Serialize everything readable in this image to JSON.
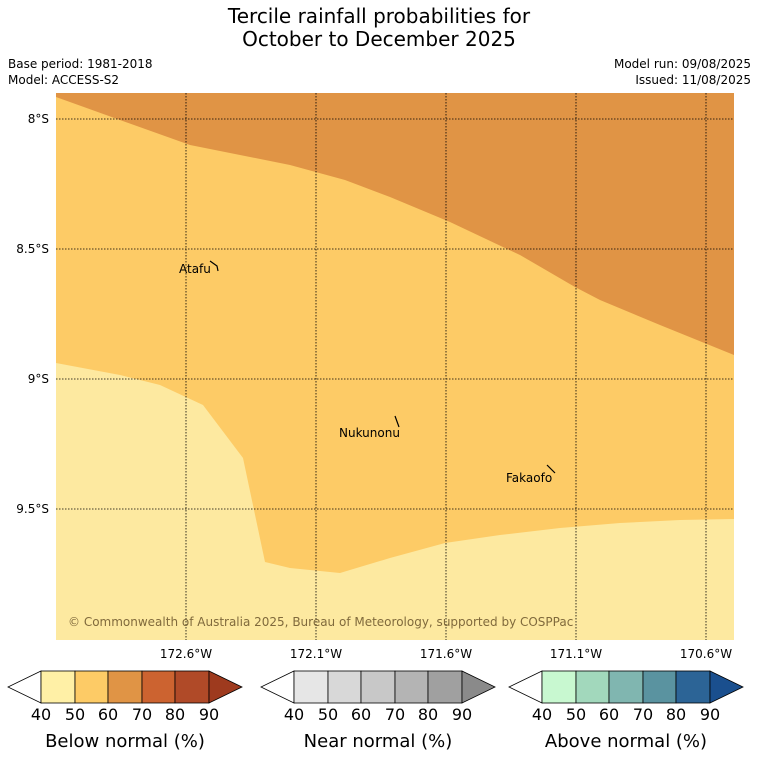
{
  "title": {
    "line1": "Tercile rainfall probabilities for",
    "line2": "October to December 2025"
  },
  "meta": {
    "base_period": "Base period: 1981-2018",
    "model": "Model: ACCESS-S2",
    "model_run": "Model run: 09/08/2025",
    "issued": "Issued: 11/08/2025"
  },
  "map": {
    "lat_labels": [
      "8°S",
      "8.5°S",
      "9°S",
      "9.5°S"
    ],
    "lon_labels": [
      "172.6°W",
      "172.1°W",
      "171.6°W",
      "171.1°W",
      "170.6°W"
    ],
    "places": [
      {
        "name": "Atafu",
        "lat": -8.55,
        "lon": -172.5
      },
      {
        "name": "Nukunonu",
        "lat": -9.18,
        "lon": -171.85
      },
      {
        "name": "Fakaofo",
        "lat": -9.36,
        "lon": -171.22
      }
    ],
    "regions": [
      {
        "category": "Below normal",
        "range": "60-70",
        "color": "#e09445"
      },
      {
        "category": "Below normal",
        "range": "50-60",
        "color": "#fdcb66"
      },
      {
        "category": "Below normal",
        "range": "40-50",
        "color": "#fde9a0"
      }
    ],
    "copyright": "© Commonwealth of Australia 2025, Bureau of Meteorology, supported by COSPPac"
  },
  "legends": [
    {
      "title": "Below normal (%)",
      "ticks": [
        "40",
        "50",
        "60",
        "70",
        "80",
        "90"
      ],
      "colors": [
        "#fff0a6",
        "#fdcb66",
        "#e09445",
        "#cc6330",
        "#b04a28",
        "#9e3a1e"
      ]
    },
    {
      "title": "Near normal (%)",
      "ticks": [
        "40",
        "50",
        "60",
        "70",
        "80",
        "90"
      ],
      "colors": [
        "#e6e6e6",
        "#d8d8d8",
        "#c8c8c8",
        "#b4b4b4",
        "#a0a0a0",
        "#8a8a8a"
      ]
    },
    {
      "title": "Above normal (%)",
      "ticks": [
        "40",
        "50",
        "60",
        "70",
        "80",
        "90"
      ],
      "colors": [
        "#c8f8d0",
        "#a2d8bc",
        "#80b6b0",
        "#5a93a0",
        "#2c6496",
        "#1a4f8e"
      ]
    }
  ]
}
